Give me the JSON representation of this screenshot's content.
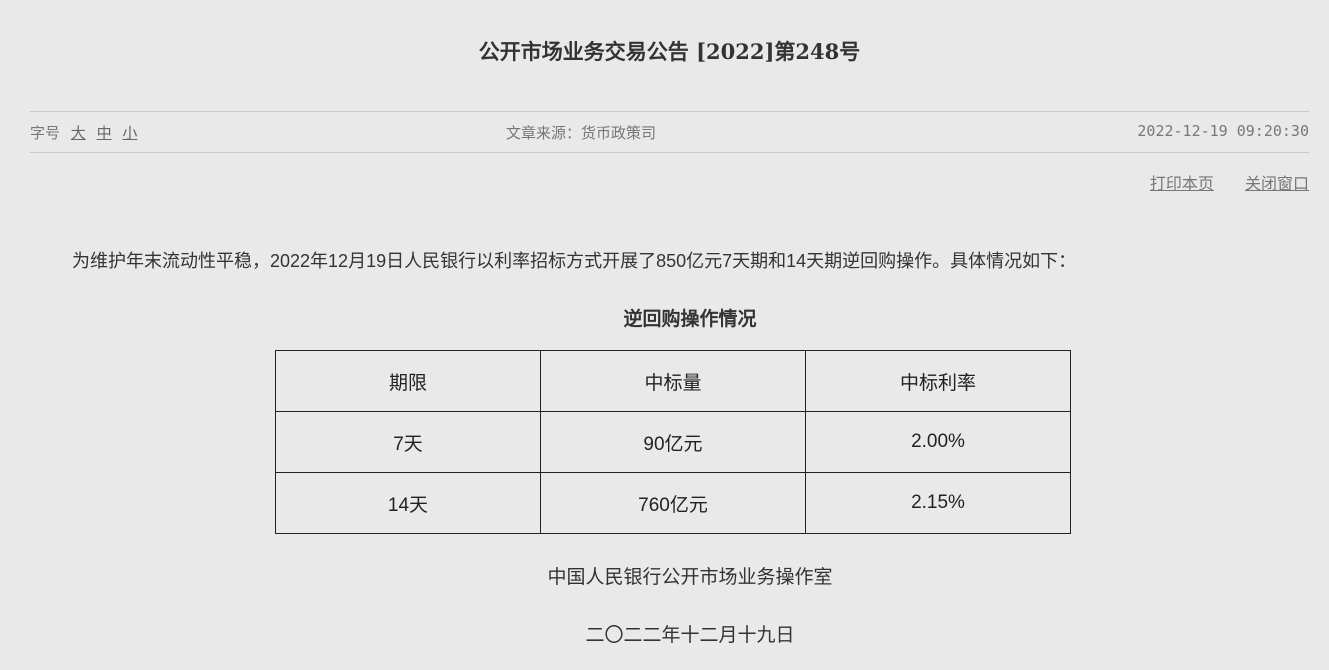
{
  "title": "公开市场业务交易公告 [2022]第248号",
  "font_size": {
    "label": "字号",
    "large": "大",
    "medium": "中",
    "small": "小"
  },
  "source": "文章来源：货币政策司",
  "datetime": "2022-12-19 09:20:30",
  "tools": {
    "print": "打印本页",
    "close": "关闭窗口"
  },
  "paragraph": "为维护年末流动性平稳，2022年12月19日人民银行以利率招标方式开展了850亿元7天期和14天期逆回购操作。具体情况如下：",
  "table": {
    "title": "逆回购操作情况",
    "headers": [
      "期限",
      "中标量",
      "中标利率"
    ],
    "rows": [
      [
        "7天",
        "90亿元",
        "2.00%"
      ],
      [
        "14天",
        "760亿元",
        "2.15%"
      ]
    ]
  },
  "signature": {
    "org": "中国人民银行公开市场业务操作室",
    "date": "二〇二二年十二月十九日"
  }
}
